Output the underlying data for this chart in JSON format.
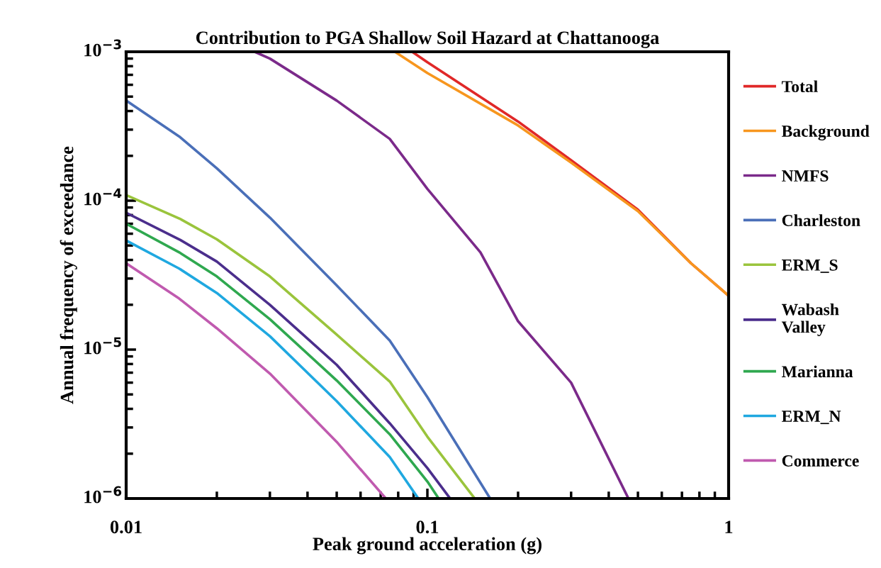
{
  "chart_data": {
    "type": "line",
    "title": "Contribution to PGA Shallow Soil Hazard at Chattanooga",
    "xlabel": "Peak ground acceleration (g)",
    "ylabel": "Annual frequency of exceedance",
    "log": "xy",
    "xlim": [
      0.01,
      1
    ],
    "xticks": [
      0.01,
      0.1,
      1
    ],
    "ylim": [
      1e-06,
      0.001
    ],
    "yticks": [
      {
        "value": 1e-06,
        "label": "10$^{−6}$"
      },
      {
        "value": 1e-05,
        "label": "10$^{−5}$"
      },
      {
        "value": 0.0001,
        "label": "10$^{−4}$"
      },
      {
        "value": 0.001,
        "label": "10$^{−3}$"
      }
    ],
    "grid": false,
    "legend": "right",
    "marker": "none",
    "line_style": "solid",
    "series": [
      {
        "name": "Total",
        "color": "#e02828",
        "x": [
          0.089,
          0.1,
          0.2,
          0.3,
          0.5,
          0.75,
          1
        ],
        "values": [
          0.001,
          0.00085,
          0.00034,
          0.000187,
          8.7e-05,
          3.8e-05,
          2.3e-05
        ]
      },
      {
        "name": "Background",
        "color": "#f7961e",
        "x": [
          0.078,
          0.1,
          0.2,
          0.3,
          0.5,
          0.75,
          1
        ],
        "values": [
          0.001,
          0.00072,
          0.00032,
          0.00018,
          8.5e-05,
          3.8e-05,
          2.3e-05
        ]
      },
      {
        "name": "NMFS",
        "color": "#7b2a8a",
        "x": [
          0.0267,
          0.03,
          0.05,
          0.075,
          0.1,
          0.15,
          0.2,
          0.3,
          0.465
        ],
        "values": [
          0.001,
          0.0009,
          0.00047,
          0.00026,
          0.00012,
          4.5e-05,
          1.55e-05,
          6e-06,
          1e-06
        ]
      },
      {
        "name": "Charleston",
        "color": "#4a6fb8",
        "x": [
          0.01,
          0.015,
          0.02,
          0.03,
          0.05,
          0.075,
          0.1,
          0.1616
        ],
        "values": [
          0.00047,
          0.00027,
          0.000165,
          7.7e-05,
          2.7e-05,
          1.15e-05,
          4.8e-06,
          1e-06
        ]
      },
      {
        "name": "ERM_S",
        "color": "#9ac43c",
        "x": [
          0.01,
          0.015,
          0.02,
          0.03,
          0.05,
          0.075,
          0.1,
          0.1436
        ],
        "values": [
          0.000109,
          7.6e-05,
          5.5e-05,
          3.1e-05,
          1.26e-05,
          6.1e-06,
          2.6e-06,
          1e-06
        ]
      },
      {
        "name": "Wabash Valley",
        "color": "#4b2e8c",
        "x": [
          0.01,
          0.015,
          0.02,
          0.03,
          0.05,
          0.075,
          0.1,
          0.119
        ],
        "values": [
          8.3e-05,
          5.5e-05,
          3.9e-05,
          2e-05,
          7.9e-06,
          3.2e-06,
          1.6e-06,
          1e-06
        ]
      },
      {
        "name": "Marianna",
        "color": "#2fa84f",
        "x": [
          0.01,
          0.015,
          0.02,
          0.03,
          0.05,
          0.075,
          0.1,
          0.109
        ],
        "values": [
          7e-05,
          4.5e-05,
          3.1e-05,
          1.6e-05,
          6.2e-06,
          2.7e-06,
          1.3e-06,
          1e-06
        ]
      },
      {
        "name": "ERM_N",
        "color": "#1fa8e0",
        "x": [
          0.01,
          0.015,
          0.02,
          0.03,
          0.05,
          0.075,
          0.0933
        ],
        "values": [
          5.4e-05,
          3.5e-05,
          2.4e-05,
          1.23e-05,
          4.5e-06,
          1.9e-06,
          1e-06
        ]
      },
      {
        "name": "Commerce",
        "color": "#c05aaf",
        "x": [
          0.01,
          0.015,
          0.02,
          0.03,
          0.05,
          0.0728
        ],
        "values": [
          3.8e-05,
          2.2e-05,
          1.39e-05,
          6.9e-06,
          2.4e-06,
          1e-06
        ]
      }
    ]
  }
}
